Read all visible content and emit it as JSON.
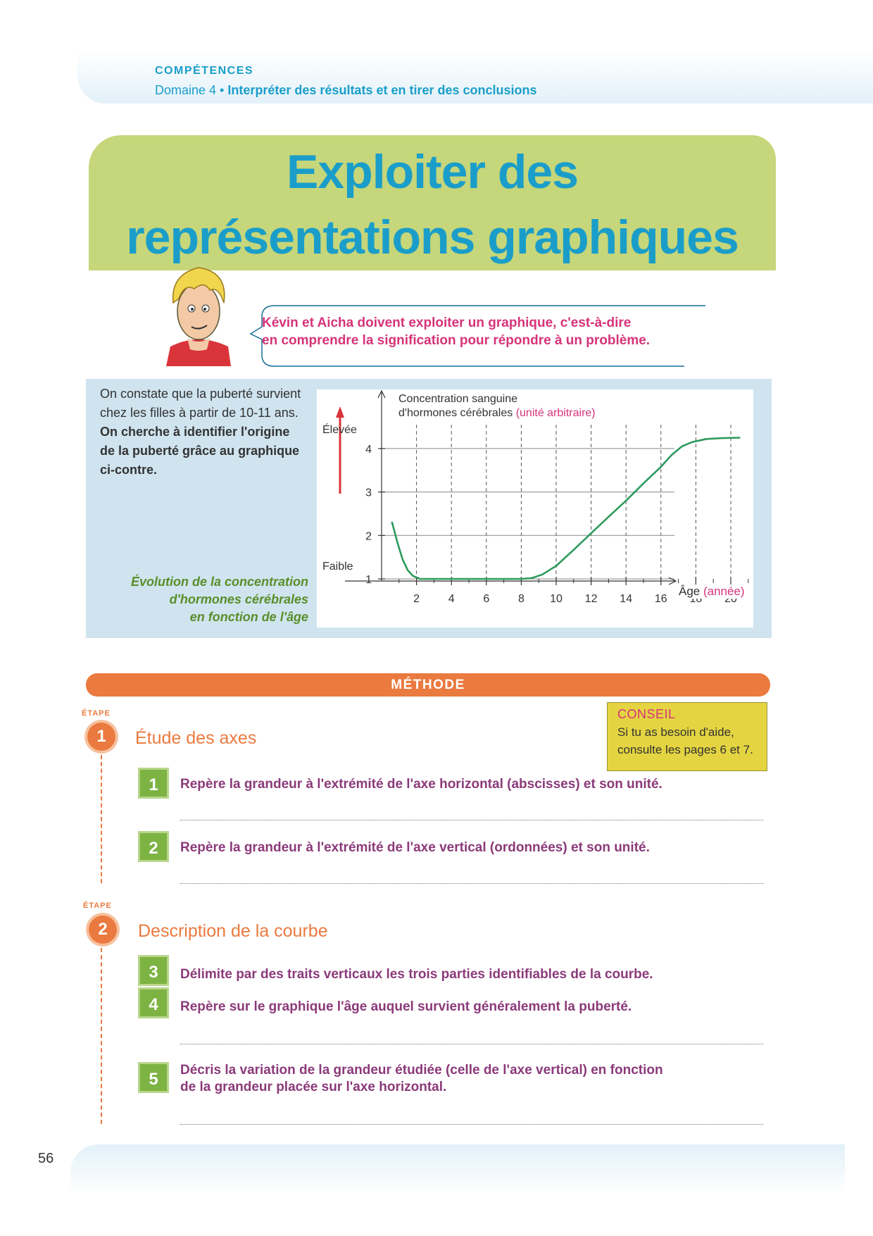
{
  "header": {
    "competences": "COMPÉTENCES",
    "domaine": "Domaine 4 •",
    "competence_text": "Interpréter des résultats et en tirer des conclusions"
  },
  "title": {
    "line1": "Exploiter des",
    "line2": "représentations graphiques"
  },
  "bubble": {
    "line1": "Kévin et Aicha doivent exploiter un graphique, c'est-à-dire",
    "line2": "en comprendre la signification pour répondre à un problème."
  },
  "intro": {
    "normal": "On constate que la puberté survient chez les filles à partir de 10-11 ans.",
    "bold": "On cherche à identifier l'origine de la puberté grâce au graphique ci-contre."
  },
  "figure_caption": {
    "line1": "Évolution de la concentration",
    "line2": "d'hormones cérébrales",
    "line3": "en fonction de l'âge"
  },
  "chart_data": {
    "type": "line",
    "ylabel_line1": "Concentration sanguine",
    "ylabel_line2": "d'hormones cérébrales",
    "ylabel_unit": "(unité arbitraire)",
    "xlabel": "Âge",
    "xlabel_unit": "(année)",
    "side_high": "Élevée",
    "side_low": "Faible",
    "x_ticks": [
      "2",
      "4",
      "6",
      "8",
      "10",
      "12",
      "14",
      "16",
      "18",
      "20"
    ],
    "y_ticks": [
      "1",
      "2",
      "3",
      "4"
    ],
    "xlim": [
      0,
      21
    ],
    "ylim": [
      0.7,
      4.6
    ],
    "series": [
      {
        "x": [
          0.6,
          0.9,
          1.2,
          1.5,
          1.8,
          2.2,
          3,
          4,
          6,
          8,
          8.6,
          9.2,
          10,
          11,
          12,
          13,
          14,
          15,
          16,
          16.6,
          17.2,
          17.8,
          18.6,
          19.5,
          20.5
        ],
        "y": [
          2.3,
          1.85,
          1.45,
          1.2,
          1.07,
          1.0,
          1.0,
          1.0,
          1.0,
          1.0,
          1.02,
          1.1,
          1.3,
          1.67,
          2.05,
          2.43,
          2.8,
          3.2,
          3.58,
          3.85,
          4.05,
          4.15,
          4.22,
          4.24,
          4.25
        ]
      }
    ],
    "colors": {
      "line": "#2e9a5e",
      "axis": "#333333"
    }
  },
  "methode": {
    "label": "MÉTHODE"
  },
  "conseil": {
    "title": "CONSEIL",
    "line1": "Si tu as besoin d'aide,",
    "line2": "consulte les pages 6 et 7."
  },
  "etapes": [
    {
      "word": "ÉTAPE",
      "num": "1",
      "title": "Étude des axes"
    },
    {
      "word": "ÉTAPE",
      "num": "2",
      "title": "Description de la courbe"
    }
  ],
  "steps": [
    {
      "num": "1",
      "text": "Repère la grandeur à l'extrémité de l'axe horizontal (abscisses) et son unité."
    },
    {
      "num": "2",
      "text": "Repère la grandeur à l'extrémité de l'axe vertical (ordonnées) et son unité."
    },
    {
      "num": "3",
      "text": "Délimite par des traits verticaux les trois parties identifiables de la courbe."
    },
    {
      "num": "4",
      "text": "Repère sur le graphique l'âge auquel survient généralement la puberté."
    },
    {
      "num": "5",
      "line1": "Décris la variation de la grandeur étudiée (celle de l'axe vertical) en fonction",
      "line2": "de la grandeur placée sur l'axe horizontal."
    }
  ],
  "page_number": "56"
}
